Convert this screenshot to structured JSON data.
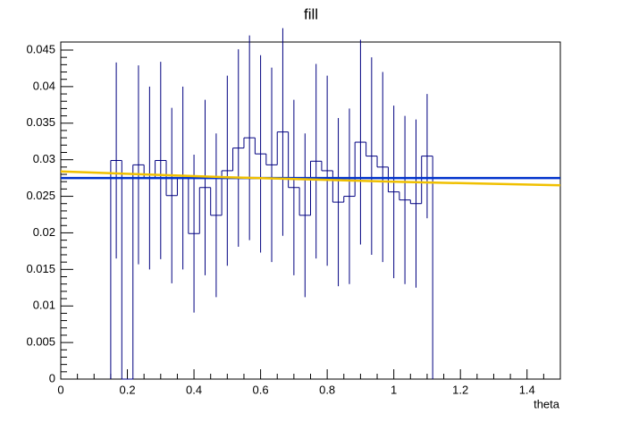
{
  "chart_data": {
    "type": "histogram",
    "title": "fill",
    "xlabel": "theta",
    "bins": [
      0.15,
      0.1833,
      0.2167,
      0.25,
      0.2833,
      0.3167,
      0.35,
      0.3833,
      0.4167,
      0.45,
      0.4833,
      0.5167,
      0.55,
      0.5833,
      0.6167,
      0.65,
      0.6833,
      0.7167,
      0.75,
      0.7833,
      0.8167,
      0.85,
      0.8833,
      0.9167,
      0.95,
      0.9833,
      1.0167,
      1.05,
      1.0833,
      1.1167
    ],
    "values": [
      0.0299,
      0,
      0.0293,
      0.0275,
      0.0299,
      0.0251,
      0.0275,
      0.0199,
      0.0262,
      0.0224,
      0.0285,
      0.0316,
      0.033,
      0.0308,
      0.0293,
      0.0338,
      0.0262,
      0.0224,
      0.0298,
      0.0285,
      0.0242,
      0.025,
      0.0324,
      0.0305,
      0.029,
      0.0256,
      0.0245,
      0.024,
      0.0305
    ],
    "errors": [
      0.0134,
      0,
      0.0136,
      0.0125,
      0.0135,
      0.012,
      0.0125,
      0.0108,
      0.012,
      0.0112,
      0.013,
      0.0135,
      0.014,
      0.0135,
      0.0133,
      0.0142,
      0.012,
      0.0112,
      0.0133,
      0.013,
      0.0115,
      0.012,
      0.014,
      0.0135,
      0.013,
      0.0118,
      0.0115,
      0.0115,
      0.0085
    ],
    "color": "#000080",
    "lines": [
      {
        "color": "#0033cc",
        "x": [
          0,
          1.5
        ],
        "values": [
          0.0275,
          0.0275
        ]
      },
      {
        "color": "#f0c000",
        "x": [
          0,
          0.5,
          1,
          1.5
        ],
        "values": [
          0.0284,
          0.0276,
          0.027,
          0.0265
        ]
      }
    ],
    "xlim": [
      0,
      1.5
    ],
    "ylim": [
      0,
      0.0461
    ],
    "xticks": [
      0,
      0.2,
      0.4,
      0.6,
      0.8,
      1,
      1.2,
      1.4
    ],
    "yticks": [
      0,
      0.005,
      0.01,
      0.015,
      0.02,
      0.025,
      0.03,
      0.035,
      0.04,
      0.045
    ]
  }
}
